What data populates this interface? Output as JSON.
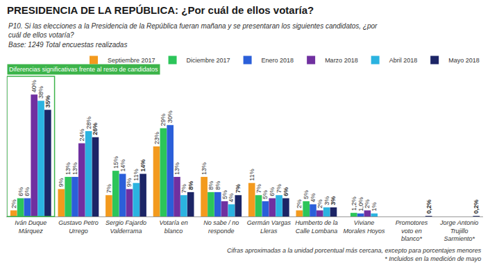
{
  "chart_data": {
    "type": "bar",
    "title": "PRESIDENCIA DE LA REPÚBLICA: ¿Por cuál de ellos votaría?",
    "subtitle": "P10. Si las elecciones a la Presidencia de la República fueran mañana y se presentaran los siguientes candidatos, ¿por cuál de ellos votaría?",
    "annotations": [
      "Base: 1249 Total encuestas realizadas",
      "Diferencias significativas frente al resto de candidatos",
      "Cifras aproximadas a la unidad porcentual más cercana, excepto para porcentajes menores",
      "* Incluidos en la medición de mayo"
    ],
    "categories": [
      "Iván Duque Márquez",
      "Gustavo Petro Urrego",
      "Sergio Fajardo Valderrama",
      "Votaría en blanco",
      "No sabe / no responde",
      "Germán Vargas Lleras",
      "Humberto de la Calle Lombana",
      "Viviane Morales Hoyos",
      "Promotores voto en blanco*",
      "Jorge Antonio Trujillo Sarmiento*"
    ],
    "series": [
      {
        "name": "Septiembre 2017",
        "color": "#f39a1e",
        "values": [
          2,
          9,
          7,
          23,
          13,
          11,
          2,
          null,
          null,
          null
        ],
        "value_labels": [
          "2%",
          "9%",
          "7%",
          "23%",
          "13%",
          "11%",
          "2%",
          null,
          null,
          null
        ]
      },
      {
        "name": "Diciembre 2017",
        "color": "#2cc55a",
        "values": [
          6,
          13,
          15,
          29,
          8,
          7,
          5,
          1.2,
          null,
          null
        ],
        "value_labels": [
          "6%",
          "13%",
          "15%",
          "29%",
          "8%",
          "7%",
          "5%",
          "1,2%",
          null,
          null
        ]
      },
      {
        "name": "Enero 2018",
        "color": "#2b5fd9",
        "values": [
          6,
          13,
          14,
          30,
          8,
          5,
          4,
          1.0,
          null,
          null
        ],
        "value_labels": [
          "6%",
          "13%",
          "14%",
          "30%",
          "8%",
          "5%",
          "4%",
          "1,0%",
          null,
          null
        ]
      },
      {
        "name": "Marzo 2018",
        "color": "#7030a0",
        "values": [
          40,
          24,
          9,
          13,
          5,
          6,
          2,
          2,
          null,
          null
        ],
        "value_labels": [
          "40%",
          "24%",
          "9%",
          "13%",
          "5%",
          "6%",
          "2%",
          "2%",
          null,
          null
        ]
      },
      {
        "name": "Abril 2018",
        "color": "#2bb3e0",
        "values": [
          38,
          28,
          11,
          7,
          4,
          7,
          3,
          1,
          null,
          null
        ],
        "value_labels": [
          "38%",
          "28%",
          "11%",
          "7%",
          "4%",
          "7%",
          "3%",
          "1%",
          null,
          null
        ]
      },
      {
        "name": "Mayo 2018",
        "color": "#1c2566",
        "values": [
          35,
          26,
          14,
          8,
          7,
          6,
          3,
          null,
          0.2,
          0.2
        ],
        "value_labels": [
          "35%",
          "26%",
          "14%",
          "8%",
          "7%",
          "6%",
          "3%",
          null,
          "0,2%",
          "0,2%"
        ]
      }
    ],
    "ylim": [
      0,
      46
    ],
    "tick_labels": "x",
    "grid": false,
    "legend": "top-right",
    "data_labels": true
  }
}
